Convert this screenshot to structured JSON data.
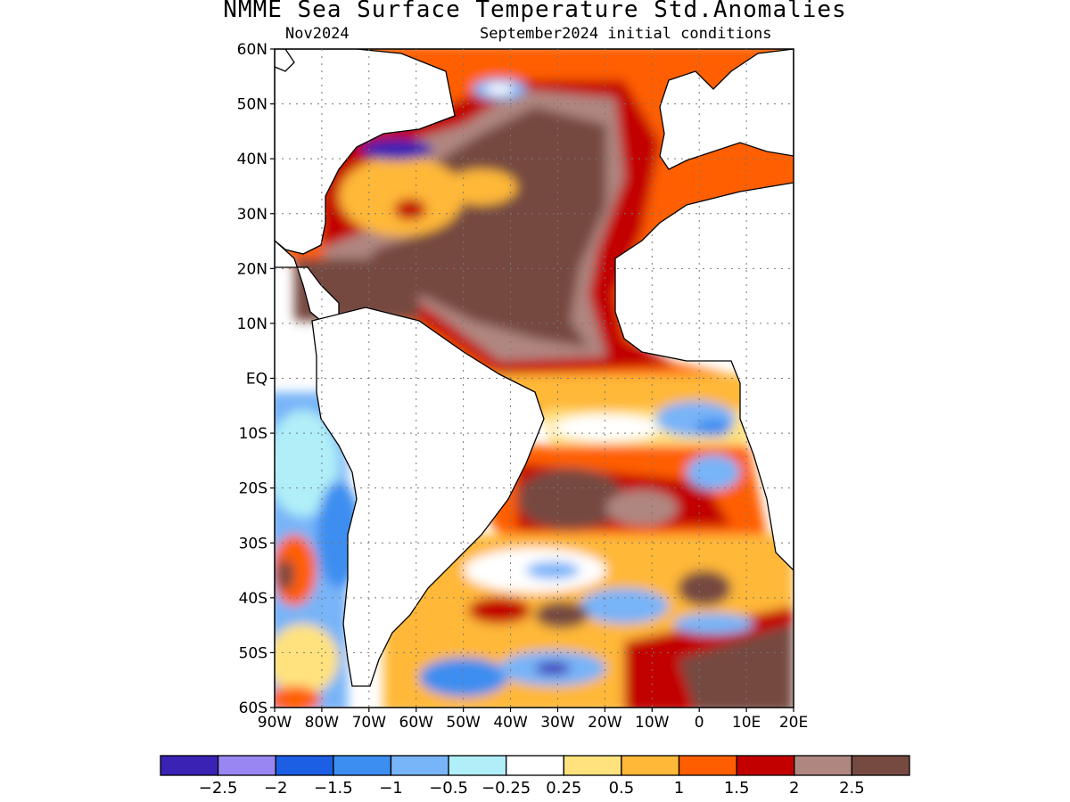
{
  "title": "NMME Sea Surface Temperature Std.Anomalies",
  "subtitle_left": "Nov2024",
  "subtitle_right": "September2024 initial conditions",
  "map": {
    "lon_range": [
      -90,
      20
    ],
    "lat_range": [
      -60,
      60
    ],
    "lat_ticks": [
      {
        "value": 60,
        "label": "60N"
      },
      {
        "value": 50,
        "label": "50N"
      },
      {
        "value": 40,
        "label": "40N"
      },
      {
        "value": 30,
        "label": "30N"
      },
      {
        "value": 20,
        "label": "20N"
      },
      {
        "value": 10,
        "label": "10N"
      },
      {
        "value": 0,
        "label": "EQ"
      },
      {
        "value": -10,
        "label": "10S"
      },
      {
        "value": -20,
        "label": "20S"
      },
      {
        "value": -30,
        "label": "30S"
      },
      {
        "value": -40,
        "label": "40S"
      },
      {
        "value": -50,
        "label": "50S"
      },
      {
        "value": -60,
        "label": "60S"
      }
    ],
    "lon_ticks": [
      {
        "value": -90,
        "label": "90W"
      },
      {
        "value": -80,
        "label": "80W"
      },
      {
        "value": -70,
        "label": "70W"
      },
      {
        "value": -60,
        "label": "60W"
      },
      {
        "value": -50,
        "label": "50W"
      },
      {
        "value": -40,
        "label": "40W"
      },
      {
        "value": -30,
        "label": "30W"
      },
      {
        "value": -20,
        "label": "20W"
      },
      {
        "value": -10,
        "label": "10W"
      },
      {
        "value": 0,
        "label": "0"
      },
      {
        "value": 10,
        "label": "10E"
      },
      {
        "value": 20,
        "label": "20E"
      }
    ],
    "grid": "dotted"
  },
  "colorbar": {
    "colors": [
      "#3a22b4",
      "#9a86f2",
      "#1c5ee4",
      "#3c8ef0",
      "#78b4f8",
      "#b0eef8",
      "#ffffff",
      "#ffe27e",
      "#ffb838",
      "#ff5e00",
      "#c20000",
      "#b08680",
      "#764a40"
    ],
    "labels": [
      "−2.5",
      "−2",
      "−1.5",
      "−1",
      "−0.5",
      "−0.25",
      "0.25",
      "0.5",
      "1",
      "1.5",
      "2",
      "2.5"
    ]
  }
}
